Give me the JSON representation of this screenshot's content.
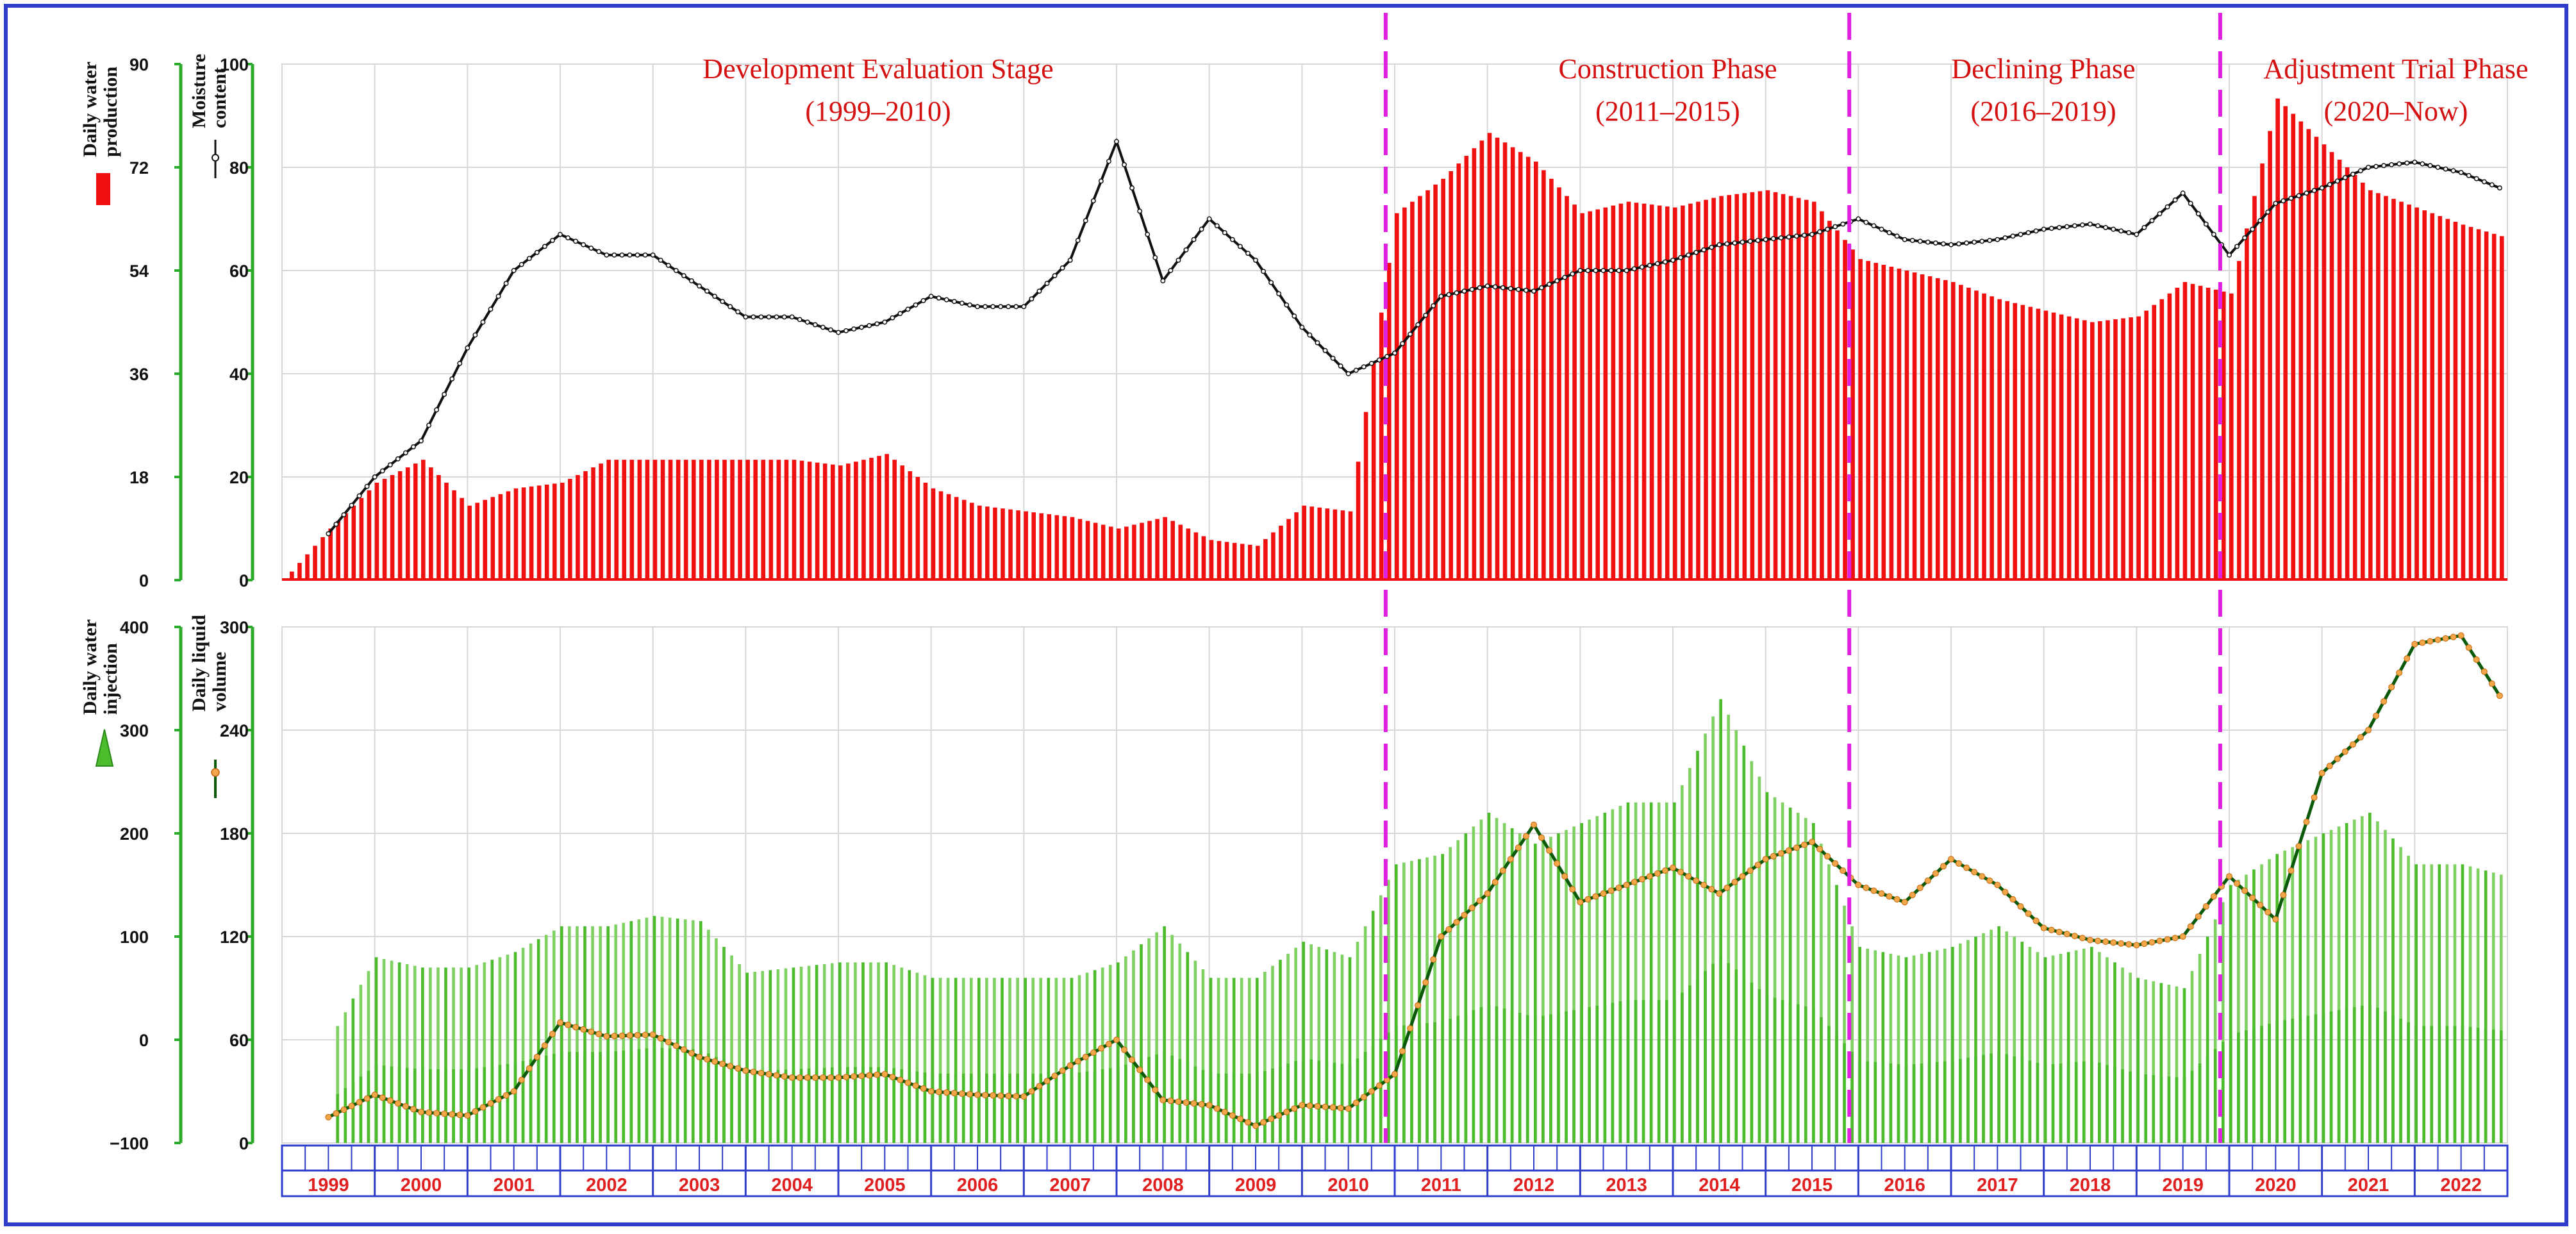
{
  "colors": {
    "frame": "#2f3ec8",
    "water_bar": "#f01010",
    "moisture_line": "#111111",
    "injection_bar": "#4cbb2c",
    "liquid_line": "#0a5a0a",
    "liquid_marker": "#f2a64a",
    "phase_divider": "#e020e0",
    "phase_text": "#d41010",
    "year_text": "#e02020",
    "axis_green": "#2caa2c",
    "grid": "#d8d8d8",
    "timeline": "#2f3ec8"
  },
  "icons": {
    "water_legend": "red-bar-icon",
    "moisture_legend": "black-line-marker-icon",
    "injection_legend": "green-triangle-icon",
    "liquid_legend": "orange-dot-line-icon"
  },
  "chart_data": [
    {
      "type": "bar",
      "panel": "top",
      "x": [
        "1999-01",
        "1999-07",
        "2000-01",
        "2000-07",
        "2001-01",
        "2001-07",
        "2002-01",
        "2002-07",
        "2003-01",
        "2003-07",
        "2004-01",
        "2004-07",
        "2005-01",
        "2005-07",
        "2006-01",
        "2006-07",
        "2007-01",
        "2007-07",
        "2008-01",
        "2008-07",
        "2009-01",
        "2009-07",
        "2010-01",
        "2010-07",
        "2011-01",
        "2011-07",
        "2012-01",
        "2012-07",
        "2013-01",
        "2013-07",
        "2014-01",
        "2014-07",
        "2015-01",
        "2015-07",
        "2016-01",
        "2016-07",
        "2017-01",
        "2017-07",
        "2018-01",
        "2018-07",
        "2019-01",
        "2019-07",
        "2020-01",
        "2020-07",
        "2021-01",
        "2021-07",
        "2022-01",
        "2022-07",
        "2022-12"
      ],
      "series": [
        {
          "name": "Daily water production",
          "axis": "left-outer",
          "values": [
            0,
            9,
            17,
            21,
            13,
            16,
            17,
            21,
            21,
            21,
            21,
            21,
            20,
            22,
            16,
            13,
            12,
            11,
            9,
            11,
            7,
            6,
            13,
            12,
            64,
            70,
            78,
            73,
            64,
            66,
            65,
            67,
            68,
            66,
            56,
            54,
            52,
            49,
            47,
            45,
            46,
            52,
            50,
            84,
            76,
            68,
            65,
            62,
            60
          ]
        },
        {
          "name": "Moisture content",
          "axis": "left-inner",
          "values": [
            0,
            9,
            20,
            27,
            45,
            60,
            67,
            63,
            63,
            57,
            51,
            51,
            48,
            50,
            55,
            53,
            53,
            62,
            85,
            58,
            70,
            62,
            49,
            40,
            44,
            55,
            57,
            56,
            60,
            60,
            62,
            65,
            66,
            67,
            70,
            66,
            65,
            66,
            68,
            69,
            67,
            75,
            63,
            73,
            76,
            80,
            81,
            79,
            76
          ]
        }
      ],
      "ylim_left_outer": [
        0,
        90
      ],
      "ylim_left_inner": [
        0,
        100
      ]
    },
    {
      "type": "bar",
      "panel": "bottom",
      "x": [
        "1999-01",
        "1999-07",
        "2000-01",
        "2000-07",
        "2001-01",
        "2001-07",
        "2002-01",
        "2002-07",
        "2003-01",
        "2003-07",
        "2004-01",
        "2004-07",
        "2005-01",
        "2005-07",
        "2006-01",
        "2006-07",
        "2007-01",
        "2007-07",
        "2008-01",
        "2008-07",
        "2009-01",
        "2009-07",
        "2010-01",
        "2010-07",
        "2011-01",
        "2011-07",
        "2012-01",
        "2012-07",
        "2013-01",
        "2013-07",
        "2014-01",
        "2014-07",
        "2015-01",
        "2015-07",
        "2016-01",
        "2016-07",
        "2017-01",
        "2017-07",
        "2018-01",
        "2018-07",
        "2019-01",
        "2019-07",
        "2020-01",
        "2020-07",
        "2021-01",
        "2021-07",
        "2022-01",
        "2022-07",
        "2022-12"
      ],
      "series": [
        {
          "name": "Daily water injection",
          "axis": "left-outer",
          "values": [
            0,
            0,
            80,
            70,
            70,
            85,
            110,
            110,
            120,
            115,
            65,
            70,
            75,
            75,
            60,
            60,
            60,
            60,
            75,
            110,
            60,
            60,
            95,
            80,
            170,
            180,
            220,
            190,
            210,
            230,
            230,
            330,
            240,
            210,
            90,
            80,
            90,
            110,
            80,
            90,
            60,
            50,
            150,
            180,
            200,
            220,
            170,
            170,
            160
          ]
        },
        {
          "name": "Daily liquid volume",
          "axis": "left-inner",
          "values": [
            5,
            15,
            28,
            18,
            16,
            30,
            70,
            62,
            63,
            50,
            42,
            38,
            38,
            40,
            30,
            28,
            27,
            45,
            60,
            25,
            22,
            10,
            22,
            20,
            40,
            120,
            145,
            185,
            140,
            150,
            160,
            145,
            165,
            175,
            150,
            140,
            165,
            150,
            125,
            118,
            115,
            120,
            155,
            130,
            215,
            240,
            290,
            295,
            260
          ]
        }
      ],
      "ylim_left_outer": [
        -100,
        400
      ],
      "ylim_left_inner": [
        0,
        300
      ]
    }
  ],
  "top_axis_outer": {
    "label_line1": "Daily water",
    "label_line2": "production",
    "ticks": [
      "0",
      "18",
      "36",
      "54",
      "72",
      "90"
    ]
  },
  "top_axis_inner": {
    "label_line1": "Moisture",
    "label_line2": "content",
    "ticks": [
      "0",
      "20",
      "40",
      "60",
      "80",
      "100"
    ]
  },
  "bottom_axis_outer": {
    "label_line1": "Daily water",
    "label_line2": "injection",
    "ticks": [
      "−100",
      "0",
      "100",
      "200",
      "300",
      "400"
    ]
  },
  "bottom_axis_inner": {
    "label_line1": "Daily liquid",
    "label_line2": "volume",
    "ticks": [
      "0",
      "60",
      "120",
      "180",
      "240",
      "300"
    ]
  },
  "phases": [
    {
      "title": "Development Evaluation Stage",
      "range": "(1999–2010)"
    },
    {
      "title": "Construction Phase",
      "range": "(2011–2015)"
    },
    {
      "title": "Declining Phase",
      "range": "(2016–2019)"
    },
    {
      "title": "Adjustment Trial Phase",
      "range": "(2020–Now)"
    }
  ],
  "years": [
    "1999",
    "2000",
    "2001",
    "2002",
    "2003",
    "2004",
    "2005",
    "2006",
    "2007",
    "2008",
    "2009",
    "2010",
    "2011",
    "2012",
    "2013",
    "2014",
    "2015",
    "2016",
    "2017",
    "2018",
    "2019",
    "2020",
    "2021",
    "2022"
  ]
}
